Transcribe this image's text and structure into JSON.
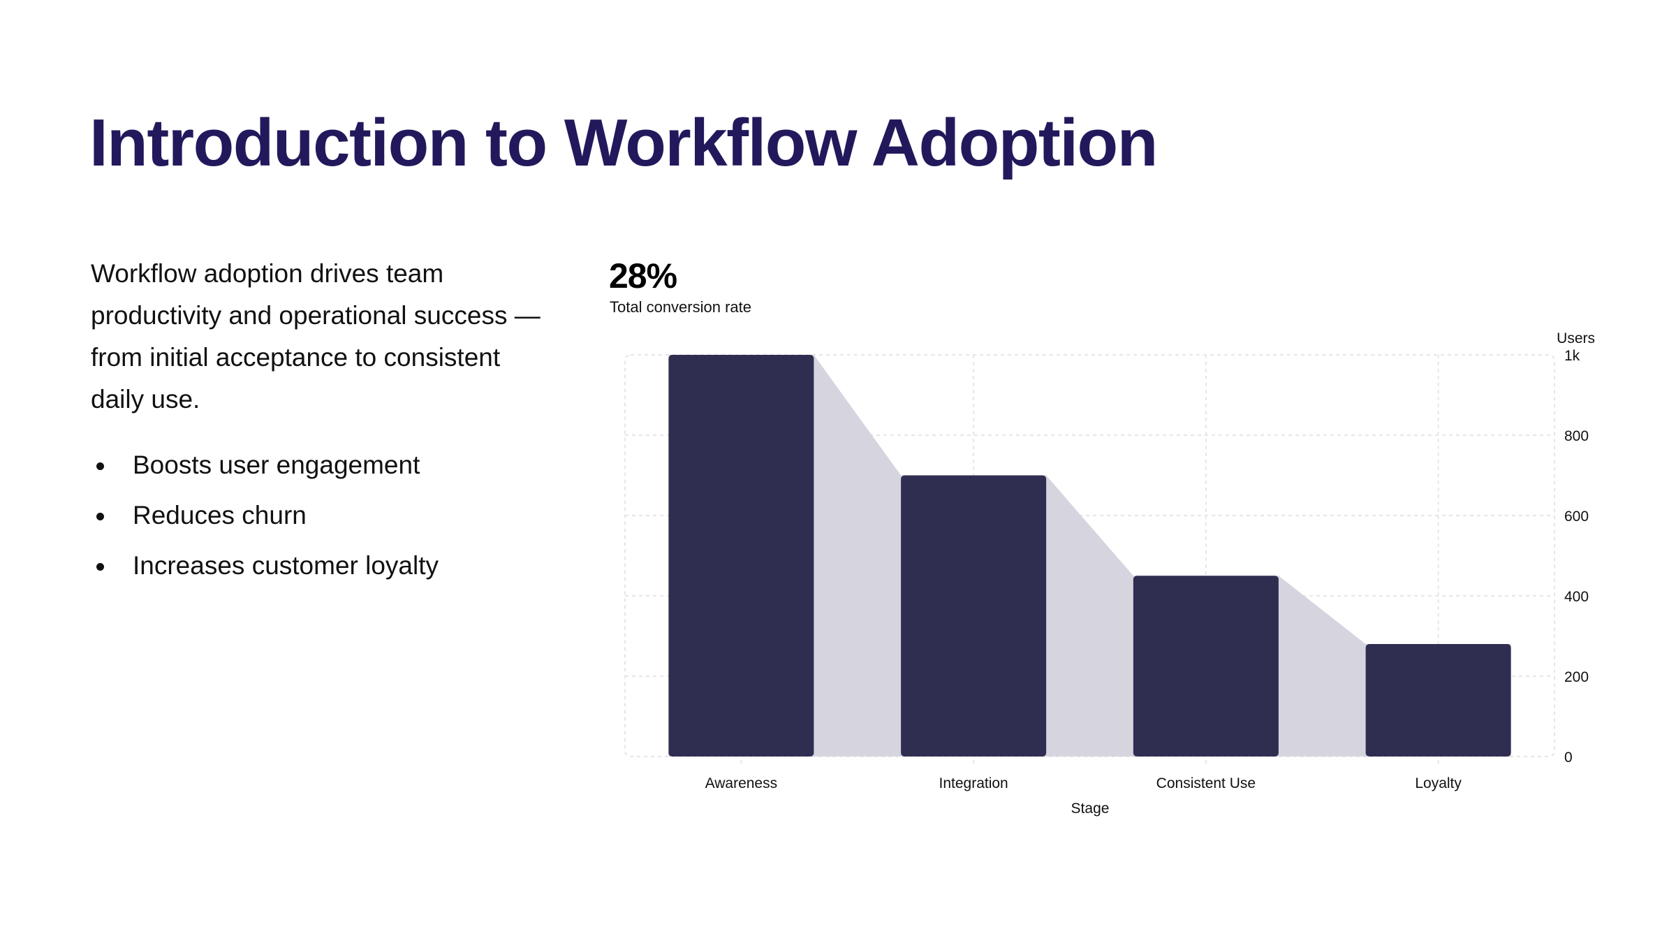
{
  "title": "Introduction to Workflow Adoption",
  "intro": "Workflow adoption drives team productivity and operational success — from initial acceptance to consistent daily use.",
  "bullets": [
    "Boosts user engagement",
    "Reduces churn",
    "Increases customer loyalty"
  ],
  "kpi": {
    "value": "28%",
    "label": "Total conversion rate"
  },
  "colors": {
    "title": "#22195c",
    "bar": "#2f2d50",
    "area": "#d6d5df",
    "grid": "#e6e6e6"
  },
  "chart_data": {
    "type": "bar",
    "categories": [
      "Awareness",
      "Integration",
      "Consistent Use",
      "Loyalty"
    ],
    "values": [
      1000,
      700,
      450,
      280
    ],
    "xlabel": "Stage",
    "ylabel": "Users",
    "ylim": [
      0,
      1000
    ],
    "yticks": [
      "0",
      "200",
      "400",
      "600",
      "800",
      "1k"
    ],
    "ytick_values": [
      0,
      200,
      400,
      600,
      800,
      1000
    ],
    "y_axis_position": "right",
    "grid": true,
    "funnel_area": true
  }
}
